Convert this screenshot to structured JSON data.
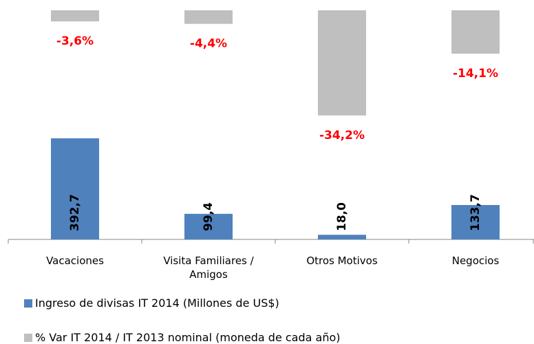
{
  "chart_data": {
    "type": "bar",
    "categories": [
      "Vacaciones",
      "Visita Familiares / Amigos",
      "Otros Motivos",
      "Negocios"
    ],
    "series": [
      {
        "name": "Ingreso de divisas IT 2014 (Millones de US$)",
        "color": "#4f81bd",
        "values": [
          392.7,
          99.4,
          18.0,
          133.7
        ],
        "value_labels": [
          "392,7",
          "99,4",
          "18,0",
          "133,7"
        ]
      },
      {
        "name": "% Var IT 2014 / IT 2013 nominal (moneda de cada año)",
        "color": "#bfbfbf",
        "axis": "y2",
        "values": [
          -3.6,
          -4.4,
          -34.2,
          -14.1
        ],
        "value_labels": [
          "-3,6%",
          "-4,4%",
          "-34,2%",
          "-14,1%"
        ]
      }
    ],
    "ylim": [
      0,
      890
    ],
    "y2lim": [
      -74.5,
      0
    ],
    "label_color": "#ff0000",
    "legend": "bottom"
  }
}
